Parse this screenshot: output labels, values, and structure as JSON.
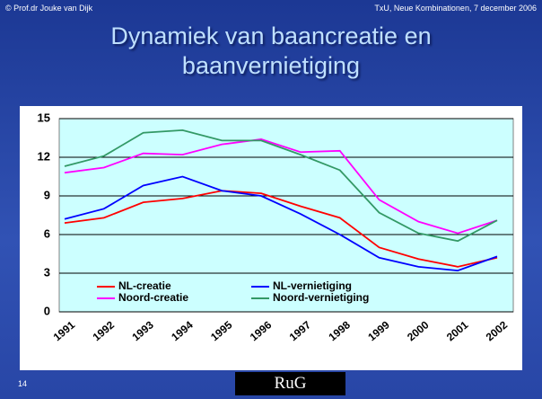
{
  "header_left": "© Prof.dr Jouke van Dijk",
  "header_right": "TxU, Neue Kombinationen, 7 december 2006",
  "page_number": "14",
  "logo": "RuG",
  "chart_data": {
    "type": "line",
    "title": "Dynamiek van baancreatie en baanvernietiging",
    "categories": [
      "1991",
      "1992",
      "1993",
      "1994",
      "1995",
      "1996",
      "1997",
      "1998",
      "1999",
      "2000",
      "2001",
      "2002"
    ],
    "series": [
      {
        "name": "NL-creatie",
        "color": "#ff0000",
        "values": [
          6.9,
          7.3,
          8.5,
          8.8,
          9.4,
          9.2,
          8.2,
          7.3,
          5.0,
          4.1,
          3.5,
          4.2
        ]
      },
      {
        "name": "NL-vernietiging",
        "color": "#0000ff",
        "values": [
          7.2,
          8.0,
          9.8,
          10.5,
          9.4,
          9.0,
          7.6,
          6.0,
          4.2,
          3.5,
          3.2,
          4.3
        ]
      },
      {
        "name": "Noord-creatie",
        "color": "#ff00ff",
        "values": [
          10.8,
          11.2,
          12.3,
          12.2,
          13.0,
          13.4,
          12.4,
          12.5,
          8.7,
          7.0,
          6.1,
          7.1
        ]
      },
      {
        "name": "Noord-vernietiging",
        "color": "#339966",
        "values": [
          11.3,
          12.1,
          13.9,
          14.1,
          13.3,
          13.3,
          12.2,
          11.0,
          7.7,
          6.1,
          5.5,
          7.1
        ]
      }
    ],
    "ylim": [
      0,
      15
    ],
    "yticks": [
      0,
      3,
      6,
      9,
      12,
      15
    ],
    "grid": true,
    "legend": "bottom"
  }
}
